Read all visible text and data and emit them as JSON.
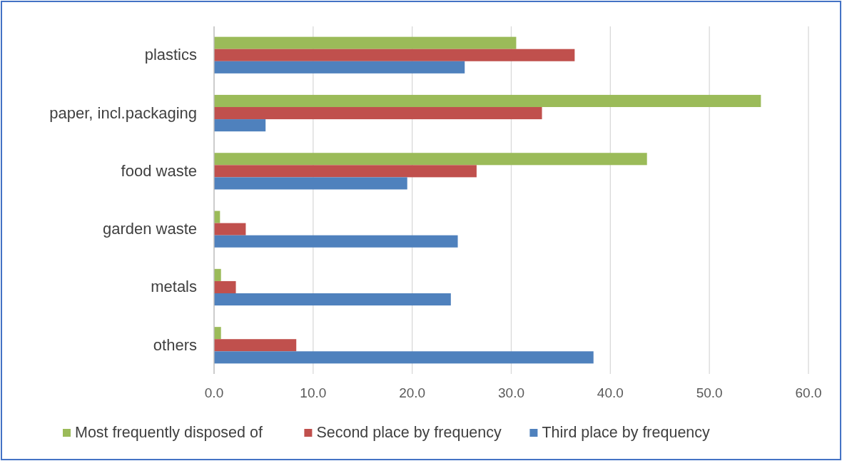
{
  "chart_data": {
    "type": "bar",
    "orientation": "horizontal",
    "categories": [
      "plastics",
      "paper, incl.packaging",
      "food waste",
      "garden waste",
      "metals",
      "others"
    ],
    "series": [
      {
        "name": "Most frequently disposed of",
        "color": "#9bbb59",
        "values": [
          30.5,
          55.2,
          43.7,
          0.6,
          0.7,
          0.7
        ]
      },
      {
        "name": "Second place by frequency",
        "color": "#c0504d",
        "values": [
          36.4,
          33.1,
          26.5,
          3.2,
          2.2,
          8.3
        ]
      },
      {
        "name": "Third place by frequency",
        "color": "#4f81bd",
        "values": [
          25.3,
          5.2,
          19.5,
          24.6,
          23.9,
          38.3
        ]
      }
    ],
    "xlim": [
      0,
      60
    ],
    "xticks": [
      {
        "value": 0,
        "label": "0.0"
      },
      {
        "value": 10,
        "label": "10.0"
      },
      {
        "value": 20,
        "label": "20.0"
      },
      {
        "value": 30,
        "label": "30.0"
      },
      {
        "value": 40,
        "label": "40.0"
      },
      {
        "value": 50,
        "label": "50.0"
      },
      {
        "value": 60,
        "label": "60.0"
      }
    ],
    "grid": "x",
    "legend": "bottom"
  }
}
